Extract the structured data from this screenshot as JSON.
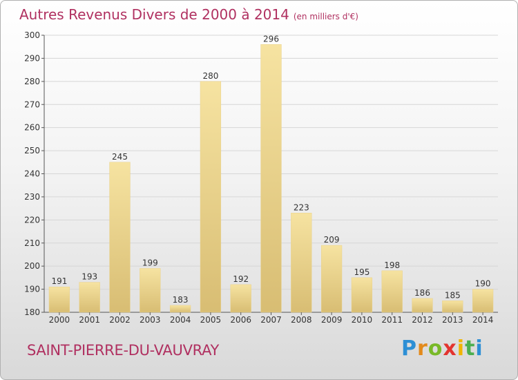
{
  "header": {
    "title": "Autres Revenus Divers de 2000 à 2014",
    "unit": "(en milliers d'€)"
  },
  "footer": {
    "place": "SAINT-PIERRE-DU-VAUVRAY",
    "logo_letters": [
      "P",
      "r",
      "o",
      "x",
      "i",
      "t",
      "i"
    ],
    "logo_colors": [
      "#2d8fd5",
      "#e38a1b",
      "#79b928",
      "#e3342f",
      "#f0b400",
      "#4caf50",
      "#2d8fd5"
    ]
  },
  "colors": {
    "title": "#b03060",
    "bar_light": "#f6e3a1",
    "bar_dark": "#d8bd73",
    "grid": "#d6d6d6"
  },
  "chart_data": {
    "type": "bar",
    "categories": [
      "2000",
      "2001",
      "2002",
      "2003",
      "2004",
      "2005",
      "2006",
      "2007",
      "2008",
      "2009",
      "2010",
      "2011",
      "2012",
      "2013",
      "2014"
    ],
    "values": [
      191,
      193,
      245,
      199,
      183,
      280,
      192,
      296,
      223,
      209,
      195,
      198,
      186,
      185,
      190
    ],
    "title": "Autres Revenus Divers de 2000 à 2014",
    "ylim": [
      180,
      300
    ],
    "yticks": [
      180,
      190,
      200,
      210,
      220,
      230,
      240,
      250,
      260,
      270,
      280,
      290,
      300
    ],
    "grid": true,
    "legend": "none"
  }
}
